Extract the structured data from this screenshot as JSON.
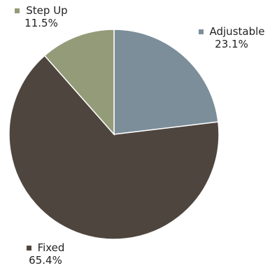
{
  "chart_data": {
    "type": "pie",
    "title": "",
    "start_angle_deg": 0,
    "direction": "clockwise",
    "slices": [
      {
        "label": "Adjustable",
        "value": 23.1,
        "value_label": "23.1%",
        "color": "#7b8e9a"
      },
      {
        "label": "Fixed",
        "value": 65.4,
        "value_label": "65.4%",
        "color": "#4e463e"
      },
      {
        "label": "Step Up",
        "value": 11.5,
        "value_label": "11.5%",
        "color": "#949b78"
      }
    ]
  }
}
